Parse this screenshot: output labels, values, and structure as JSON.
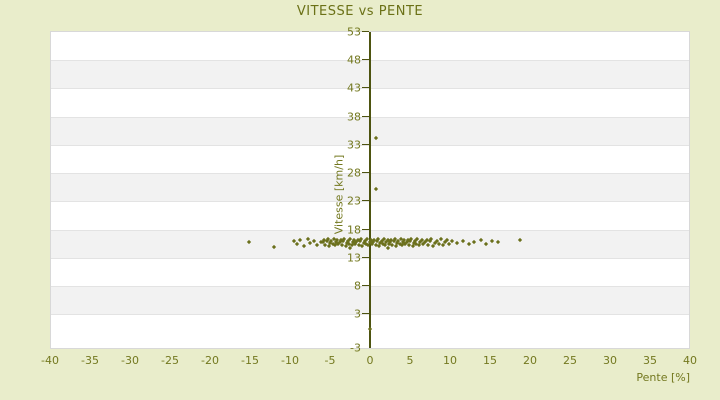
{
  "colors": {
    "page_bg": "#e9edcb",
    "title_text": "#6b7117",
    "tick_text": "#73781f",
    "axis_line": "#4d5310",
    "marker": "#6b701c",
    "plot_bg": "#ffffff",
    "band_alt": "#f2f2f2",
    "gridline": "#e3e3e3",
    "plot_border": "#d8d8d8"
  },
  "chart_data": {
    "type": "scatter",
    "title": "VITESSE vs PENTE",
    "xlabel": "Pente [%]",
    "ylabel": "Vitesse [km/h]",
    "xlim": [
      -40,
      40
    ],
    "ylim": [
      -3,
      53
    ],
    "xticks": [
      -40,
      -35,
      -30,
      -25,
      -20,
      -15,
      -10,
      -5,
      0,
      5,
      10,
      15,
      20,
      25,
      30,
      35,
      40
    ],
    "yticks": [
      53,
      48,
      43,
      38,
      33,
      28,
      23,
      18,
      13,
      8,
      3,
      -3
    ],
    "grid": "horizontal-bands",
    "legend": "none",
    "marker_shape": "diamond",
    "points": [
      [
        -15.2,
        15.8
      ],
      [
        -12.0,
        14.9
      ],
      [
        -9.5,
        16.0
      ],
      [
        -9.2,
        15.4
      ],
      [
        -8.8,
        16.2
      ],
      [
        -8.3,
        15.1
      ],
      [
        -7.8,
        16.3
      ],
      [
        -7.5,
        15.6
      ],
      [
        -7.0,
        15.9
      ],
      [
        -6.6,
        15.2
      ],
      [
        -6.1,
        15.7
      ],
      [
        -5.9,
        15.8
      ],
      [
        -5.75,
        16.2
      ],
      [
        -5.6,
        15.3
      ],
      [
        -5.45,
        15.9
      ],
      [
        -5.3,
        16.4
      ],
      [
        -5.15,
        15.1
      ],
      [
        -5.0,
        15.6
      ],
      [
        -4.85,
        16.0
      ],
      [
        -4.7,
        15.4
      ],
      [
        -4.55,
        16.3
      ],
      [
        -4.4,
        15.2
      ],
      [
        -4.25,
        15.7
      ],
      [
        -4.1,
        16.1
      ],
      [
        -3.95,
        15.5
      ],
      [
        -3.8,
        15.8
      ],
      [
        -3.65,
        16.2
      ],
      [
        -3.5,
        15.3
      ],
      [
        -3.35,
        15.9
      ],
      [
        -3.2,
        16.4
      ],
      [
        -3.05,
        15.1
      ],
      [
        -2.9,
        15.6
      ],
      [
        -2.75,
        16.0
      ],
      [
        -2.6,
        15.4
      ],
      [
        -2.45,
        16.3
      ],
      [
        -2.3,
        15.2
      ],
      [
        -2.15,
        15.7
      ],
      [
        -2.0,
        16.1
      ],
      [
        -1.85,
        15.5
      ],
      [
        -1.7,
        15.8
      ],
      [
        -1.55,
        16.2
      ],
      [
        -1.4,
        15.3
      ],
      [
        -1.25,
        15.9
      ],
      [
        -1.1,
        16.4
      ],
      [
        -0.95,
        15.1
      ],
      [
        -0.8,
        15.6
      ],
      [
        -0.65,
        16.0
      ],
      [
        -0.5,
        15.4
      ],
      [
        -0.35,
        16.3
      ],
      [
        -0.2,
        15.2
      ],
      [
        -0.05,
        15.7
      ],
      [
        0.1,
        16.1
      ],
      [
        0.25,
        15.5
      ],
      [
        0.4,
        15.8
      ],
      [
        0.55,
        16.2
      ],
      [
        0.7,
        15.3
      ],
      [
        0.85,
        15.9
      ],
      [
        1.0,
        16.4
      ],
      [
        1.15,
        15.1
      ],
      [
        1.3,
        15.6
      ],
      [
        1.45,
        16.0
      ],
      [
        1.6,
        15.4
      ],
      [
        1.75,
        16.3
      ],
      [
        1.9,
        15.2
      ],
      [
        2.05,
        15.7
      ],
      [
        2.2,
        16.1
      ],
      [
        2.35,
        15.5
      ],
      [
        2.5,
        15.8
      ],
      [
        2.65,
        16.2
      ],
      [
        2.8,
        15.3
      ],
      [
        2.95,
        15.9
      ],
      [
        3.1,
        16.4
      ],
      [
        3.25,
        15.1
      ],
      [
        3.4,
        15.6
      ],
      [
        3.55,
        16.0
      ],
      [
        3.7,
        15.4
      ],
      [
        3.85,
        16.3
      ],
      [
        4.0,
        15.2
      ],
      [
        4.15,
        15.7
      ],
      [
        4.3,
        16.1
      ],
      [
        4.45,
        15.5
      ],
      [
        4.6,
        15.8
      ],
      [
        4.75,
        16.2
      ],
      [
        4.9,
        15.3
      ],
      [
        5.05,
        15.9
      ],
      [
        5.2,
        16.4
      ],
      [
        5.35,
        15.1
      ],
      [
        5.5,
        15.6
      ],
      [
        5.65,
        16.0
      ],
      [
        5.8,
        15.4
      ],
      [
        5.95,
        16.3
      ],
      [
        6.1,
        15.2
      ],
      [
        6.3,
        15.7
      ],
      [
        6.5,
        16.1
      ],
      [
        6.7,
        15.5
      ],
      [
        6.9,
        15.8
      ],
      [
        7.1,
        16.2
      ],
      [
        7.3,
        15.3
      ],
      [
        7.5,
        15.9
      ],
      [
        7.7,
        16.4
      ],
      [
        7.9,
        15.1
      ],
      [
        8.1,
        15.6
      ],
      [
        8.35,
        16.0
      ],
      [
        8.6,
        15.4
      ],
      [
        8.85,
        16.3
      ],
      [
        9.1,
        15.2
      ],
      [
        9.4,
        15.7
      ],
      [
        9.7,
        16.1
      ],
      [
        9.9,
        15.5
      ],
      [
        10.3,
        15.9
      ],
      [
        10.9,
        15.6
      ],
      [
        11.7,
        16.0
      ],
      [
        12.4,
        15.4
      ],
      [
        13.1,
        15.8
      ],
      [
        13.9,
        16.1
      ],
      [
        14.6,
        15.5
      ],
      [
        15.3,
        15.9
      ],
      [
        16.1,
        15.7
      ],
      [
        18.8,
        16.1
      ],
      [
        0.8,
        34.3
      ],
      [
        0.8,
        25.2
      ],
      [
        0.0,
        0.3
      ],
      [
        -2.5,
        14.7
      ],
      [
        2.3,
        14.8
      ]
    ]
  }
}
